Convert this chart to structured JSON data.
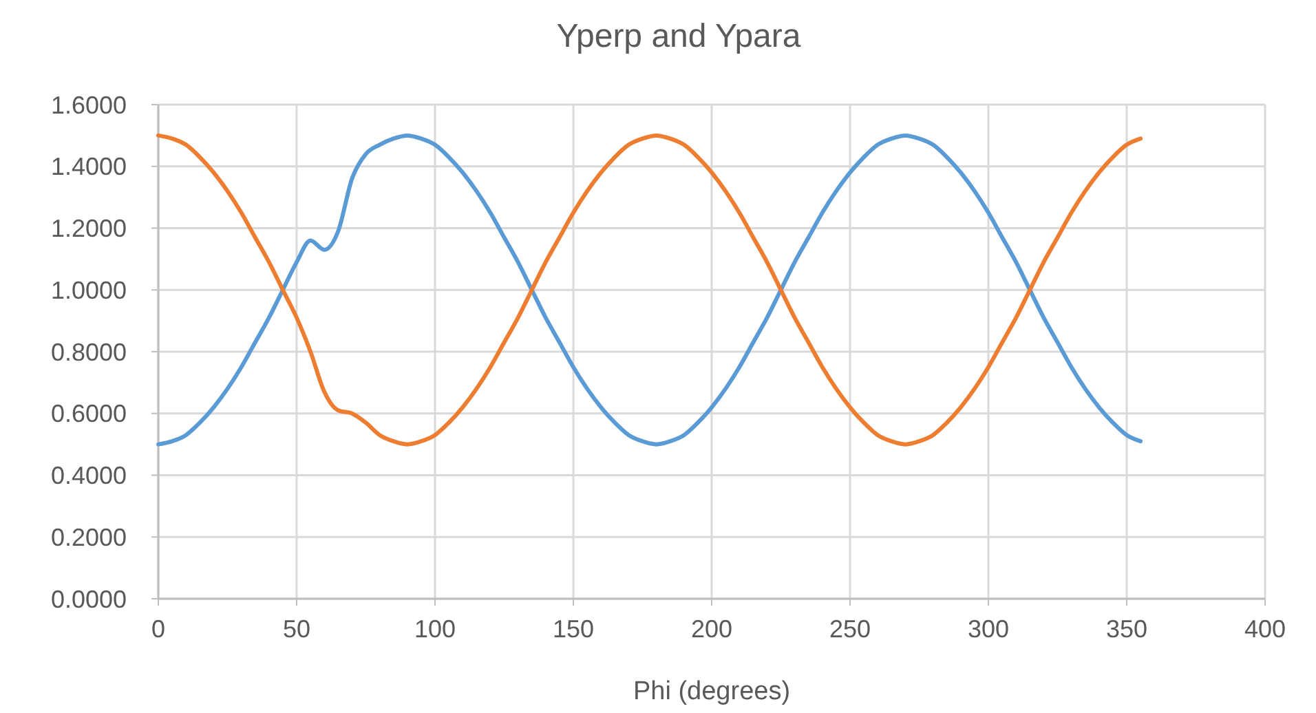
{
  "chart_data": {
    "type": "line",
    "title": "Yperp and Ypara",
    "xlabel": "Phi (degrees)",
    "x": [
      0,
      5,
      10,
      15,
      20,
      25,
      30,
      35,
      40,
      45,
      50,
      55,
      60,
      65,
      70,
      75,
      80,
      85,
      90,
      95,
      100,
      105,
      110,
      115,
      120,
      125,
      130,
      135,
      140,
      145,
      150,
      155,
      160,
      165,
      170,
      175,
      180,
      185,
      190,
      195,
      200,
      205,
      210,
      215,
      220,
      225,
      230,
      235,
      240,
      245,
      250,
      255,
      260,
      265,
      270,
      275,
      280,
      285,
      290,
      295,
      300,
      305,
      310,
      315,
      320,
      325,
      330,
      335,
      340,
      345,
      350,
      355
    ],
    "series": [
      {
        "color": "#5b9bd5",
        "values": [
          0.5,
          0.51,
          0.53,
          0.57,
          0.62,
          0.68,
          0.75,
          0.83,
          0.91,
          1.0,
          1.09,
          1.16,
          1.13,
          1.19,
          1.36,
          1.44,
          1.47,
          1.49,
          1.5,
          1.49,
          1.47,
          1.43,
          1.38,
          1.32,
          1.25,
          1.17,
          1.09,
          1.0,
          0.91,
          0.83,
          0.75,
          0.68,
          0.62,
          0.57,
          0.53,
          0.51,
          0.5,
          0.51,
          0.53,
          0.57,
          0.62,
          0.68,
          0.75,
          0.83,
          0.91,
          1.0,
          1.09,
          1.17,
          1.25,
          1.32,
          1.38,
          1.43,
          1.47,
          1.49,
          1.5,
          1.49,
          1.47,
          1.43,
          1.38,
          1.32,
          1.25,
          1.17,
          1.09,
          1.0,
          0.91,
          0.83,
          0.75,
          0.68,
          0.62,
          0.57,
          0.53,
          0.51
        ]
      },
      {
        "color": "#ed7d31",
        "values": [
          1.5,
          1.49,
          1.47,
          1.43,
          1.38,
          1.32,
          1.25,
          1.17,
          1.09,
          1.0,
          0.91,
          0.8,
          0.67,
          0.61,
          0.6,
          0.57,
          0.53,
          0.51,
          0.5,
          0.51,
          0.53,
          0.57,
          0.62,
          0.68,
          0.75,
          0.83,
          0.91,
          1.0,
          1.09,
          1.17,
          1.25,
          1.32,
          1.38,
          1.43,
          1.47,
          1.49,
          1.5,
          1.49,
          1.47,
          1.43,
          1.38,
          1.32,
          1.25,
          1.17,
          1.09,
          1.0,
          0.91,
          0.83,
          0.75,
          0.68,
          0.62,
          0.57,
          0.53,
          0.51,
          0.5,
          0.51,
          0.53,
          0.57,
          0.62,
          0.68,
          0.75,
          0.83,
          0.91,
          1.0,
          1.09,
          1.17,
          1.25,
          1.32,
          1.38,
          1.43,
          1.47,
          1.49
        ]
      }
    ],
    "xlim": [
      0,
      400
    ],
    "xticks": [
      0,
      50,
      100,
      150,
      200,
      250,
      300,
      350,
      400
    ],
    "ylim": [
      0,
      1.6
    ],
    "yticks": [
      {
        "value": 0,
        "label": "0.0000"
      },
      {
        "value": 0.2,
        "label": "0.2000"
      },
      {
        "value": 0.4,
        "label": "0.4000"
      },
      {
        "value": 0.6,
        "label": "0.6000"
      },
      {
        "value": 0.8,
        "label": "0.8000"
      },
      {
        "value": 1.0,
        "label": "1.0000"
      },
      {
        "value": 1.2,
        "label": "1.2000"
      },
      {
        "value": 1.4,
        "label": "1.4000"
      },
      {
        "value": 1.6,
        "label": "1.6000"
      }
    ],
    "grid": true,
    "marker": "none",
    "line_style": "solid"
  }
}
